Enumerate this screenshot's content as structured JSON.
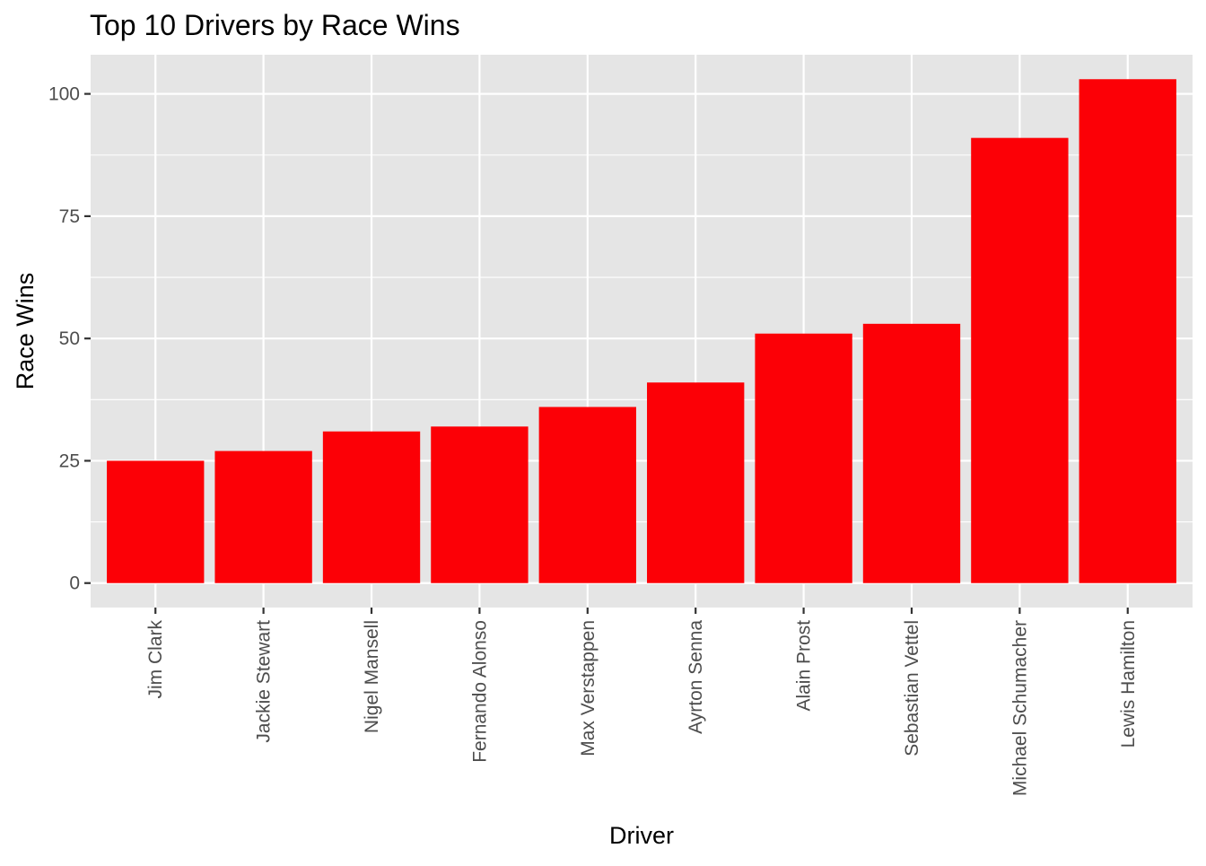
{
  "chart_data": {
    "type": "bar",
    "title": "Top 10 Drivers by Race Wins",
    "xlabel": "Driver",
    "ylabel": "Race Wins",
    "categories": [
      "Jim Clark",
      "Jackie Stewart",
      "Nigel Mansell",
      "Fernando Alonso",
      "Max Verstappen",
      "Ayrton Senna",
      "Alain Prost",
      "Sebastian Vettel",
      "Michael Schumacher",
      "Lewis Hamilton"
    ],
    "values": [
      25,
      27,
      31,
      32,
      36,
      41,
      51,
      53,
      91,
      103
    ],
    "ylim": [
      -5,
      108
    ],
    "yticks": [
      "0",
      "25",
      "50",
      "75",
      "100"
    ],
    "bar_color": "#fc0006",
    "panel_color": "#e5e5e5",
    "grid": true,
    "legend": "none"
  }
}
